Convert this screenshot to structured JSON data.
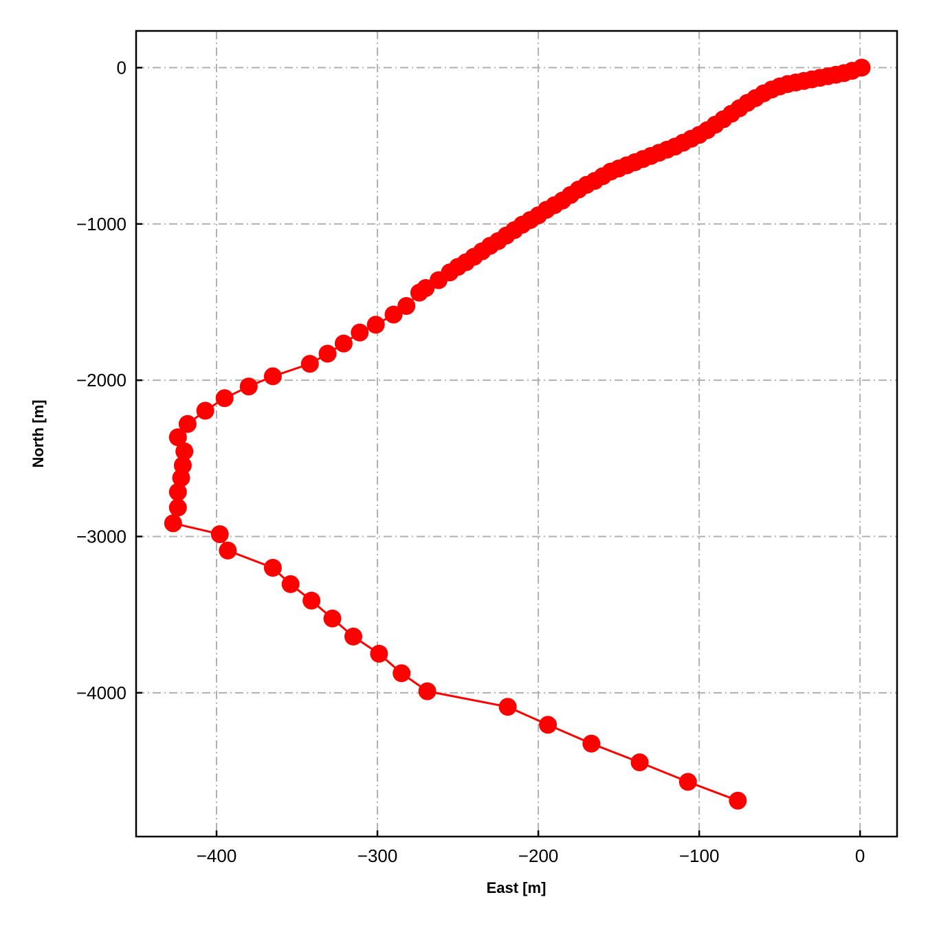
{
  "chart_data": {
    "type": "line",
    "xlabel": "East [m]",
    "ylabel": "North [m]",
    "xlim": [
      -450,
      23
    ],
    "ylim": [
      -4920,
      235
    ],
    "xticks": [
      -400,
      -300,
      -200,
      -100,
      0
    ],
    "yticks": [
      0,
      -1000,
      -2000,
      -3000,
      -4000
    ],
    "xtick_labels": [
      "−400",
      "−300",
      "−200",
      "−100",
      "0"
    ],
    "ytick_labels": [
      "0",
      "−1000",
      "−2000",
      "−3000",
      "−4000"
    ],
    "grid": true,
    "legend": false,
    "series": [
      {
        "color": "#ff0000",
        "marker": "circle",
        "points": [
          [
            1,
            0
          ],
          [
            -5,
            -20
          ],
          [
            -10,
            -35
          ],
          [
            -15,
            -45
          ],
          [
            -20,
            -55
          ],
          [
            -25,
            -65
          ],
          [
            -30,
            -75
          ],
          [
            -35,
            -85
          ],
          [
            -40,
            -95
          ],
          [
            -45,
            -105
          ],
          [
            -50,
            -120
          ],
          [
            -55,
            -140
          ],
          [
            -60,
            -165
          ],
          [
            -65,
            -195
          ],
          [
            -70,
            -225
          ],
          [
            -75,
            -260
          ],
          [
            -80,
            -295
          ],
          [
            -85,
            -330
          ],
          [
            -90,
            -365
          ],
          [
            -95,
            -400
          ],
          [
            -100,
            -430
          ],
          [
            -105,
            -455
          ],
          [
            -110,
            -480
          ],
          [
            -115,
            -505
          ],
          [
            -120,
            -525
          ],
          [
            -125,
            -545
          ],
          [
            -130,
            -565
          ],
          [
            -135,
            -585
          ],
          [
            -140,
            -605
          ],
          [
            -145,
            -625
          ],
          [
            -150,
            -645
          ],
          [
            -155,
            -665
          ],
          [
            -160,
            -695
          ],
          [
            -165,
            -725
          ],
          [
            -170,
            -750
          ],
          [
            -175,
            -780
          ],
          [
            -180,
            -815
          ],
          [
            -185,
            -850
          ],
          [
            -190,
            -880
          ],
          [
            -195,
            -910
          ],
          [
            -200,
            -945
          ],
          [
            -205,
            -975
          ],
          [
            -210,
            -1005
          ],
          [
            -215,
            -1040
          ],
          [
            -220,
            -1075
          ],
          [
            -225,
            -1110
          ],
          [
            -230,
            -1140
          ],
          [
            -235,
            -1175
          ],
          [
            -240,
            -1210
          ],
          [
            -245,
            -1245
          ],
          [
            -250,
            -1275
          ],
          [
            -255,
            -1310
          ],
          [
            -262,
            -1360
          ],
          [
            -270,
            -1410
          ],
          [
            -274,
            -1440
          ],
          [
            -282,
            -1525
          ],
          [
            -290,
            -1580
          ],
          [
            -301,
            -1645
          ],
          [
            -311,
            -1695
          ],
          [
            -321,
            -1765
          ],
          [
            -331,
            -1830
          ],
          [
            -342,
            -1895
          ],
          [
            -365,
            -1975
          ],
          [
            -380,
            -2040
          ],
          [
            -395,
            -2115
          ],
          [
            -407,
            -2195
          ],
          [
            -418,
            -2280
          ],
          [
            -424,
            -2365
          ],
          [
            -420,
            -2455
          ],
          [
            -421,
            -2545
          ],
          [
            -422,
            -2625
          ],
          [
            -424,
            -2715
          ],
          [
            -424,
            -2815
          ],
          [
            -427,
            -2915
          ],
          [
            -398,
            -2985
          ],
          [
            -393,
            -3090
          ],
          [
            -365,
            -3200
          ],
          [
            -354,
            -3305
          ],
          [
            -341,
            -3410
          ],
          [
            -328,
            -3525
          ],
          [
            -315,
            -3640
          ],
          [
            -299,
            -3750
          ],
          [
            -285,
            -3875
          ],
          [
            -269,
            -3990
          ],
          [
            -219,
            -4090
          ],
          [
            -194,
            -4205
          ],
          [
            -167,
            -4325
          ],
          [
            -137,
            -4445
          ],
          [
            -107,
            -4570
          ],
          [
            -76,
            -4690
          ]
        ]
      }
    ]
  }
}
